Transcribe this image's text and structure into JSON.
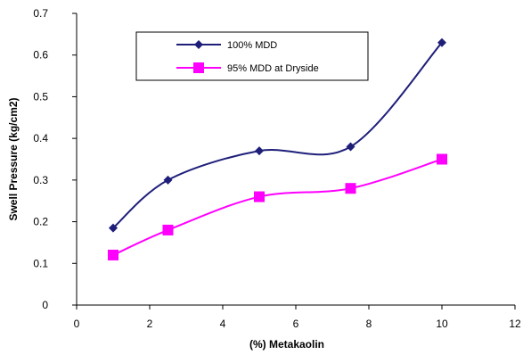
{
  "chart_data": {
    "type": "line",
    "title": "",
    "xlabel": "(%) Metakaolin",
    "ylabel": "Swell Pressure (kg/cm2)",
    "xlim": [
      0,
      12
    ],
    "ylim": [
      0,
      0.7
    ],
    "x_ticks": [
      0,
      2,
      4,
      6,
      8,
      10,
      12
    ],
    "y_ticks": [
      0,
      0.1,
      0.2,
      0.3,
      0.4,
      0.5,
      0.6,
      0.7
    ],
    "grid": false,
    "legend_position": "top-left",
    "x": [
      1,
      2.5,
      5,
      7.5,
      10
    ],
    "series": [
      {
        "name": "100% MDD",
        "values": [
          0.185,
          0.3,
          0.37,
          0.38,
          0.63
        ],
        "color": "#1f1f7a",
        "marker": "diamond",
        "smooth": true
      },
      {
        "name": "95% MDD at Dryside",
        "values": [
          0.12,
          0.18,
          0.26,
          0.28,
          0.35
        ],
        "color": "#ff00ff",
        "marker": "square",
        "smooth": true
      }
    ]
  }
}
